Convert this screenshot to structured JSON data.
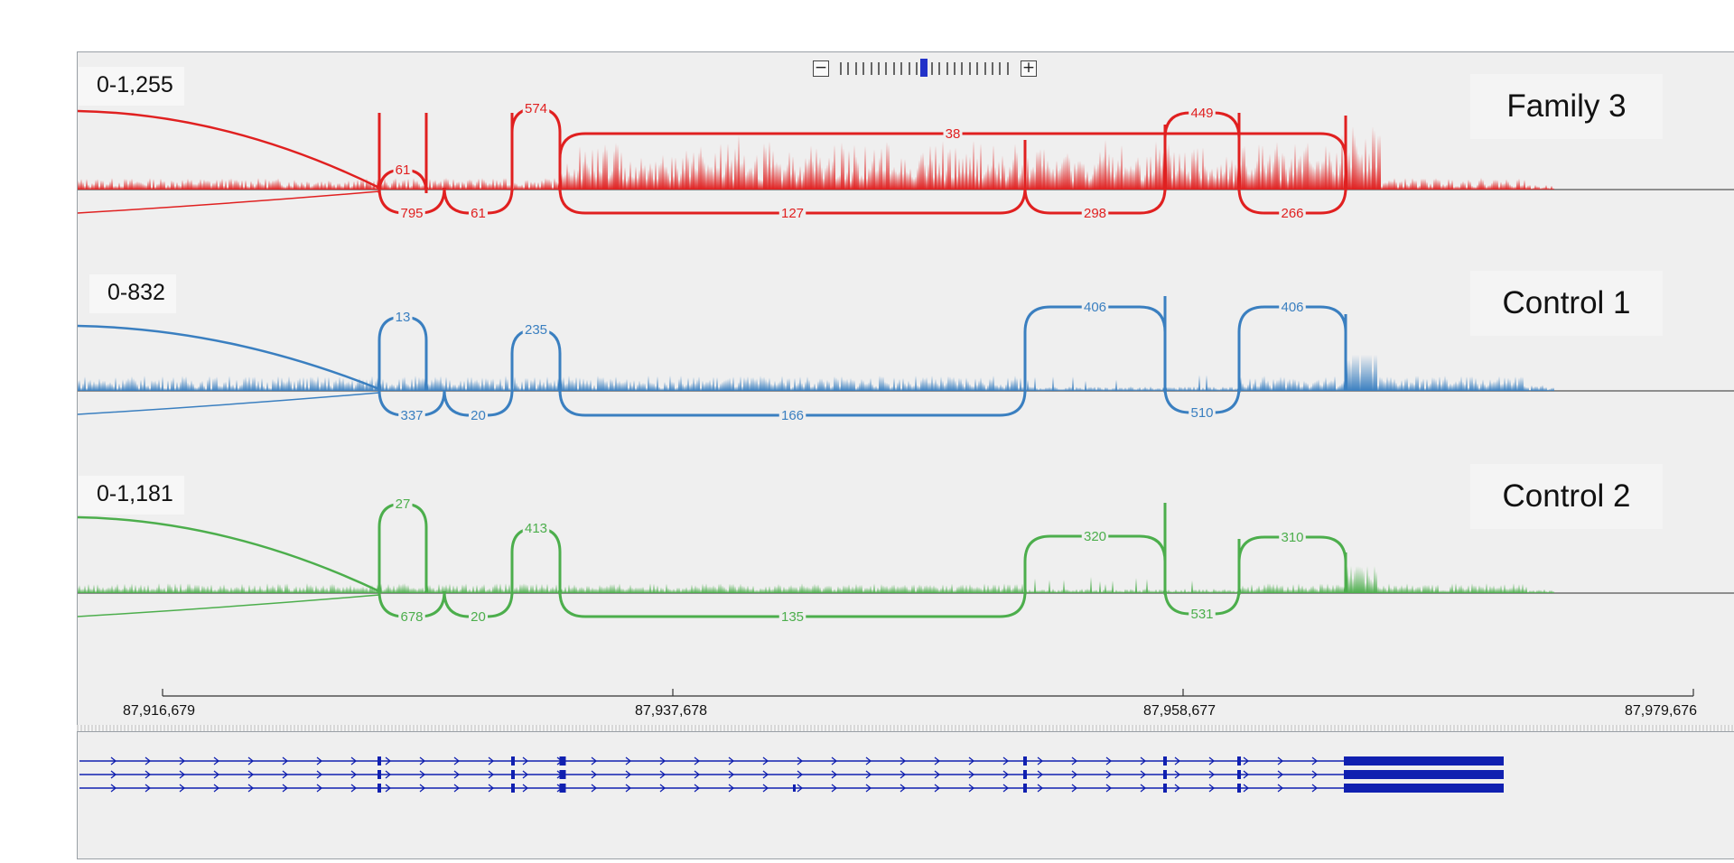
{
  "zoom": {
    "minus_label": "−",
    "plus_label": "+",
    "level": 11,
    "levels": 23
  },
  "region": {
    "start": 87916679,
    "end": 87979676
  },
  "ruler": {
    "ticks": [
      "87,916,679",
      "87,937,678",
      "87,958,677",
      "87,979,676"
    ]
  },
  "tracks": [
    {
      "name": "Family 3",
      "data_range": "0-1,255",
      "color": "#e02020",
      "junctions": [
        {
          "label": "61",
          "side": "above"
        },
        {
          "label": "574",
          "side": "above"
        },
        {
          "label": "38",
          "side": "above"
        },
        {
          "label": "449",
          "side": "above"
        },
        {
          "label": "795",
          "side": "below"
        },
        {
          "label": "61",
          "side": "below"
        },
        {
          "label": "127",
          "side": "below"
        },
        {
          "label": "298",
          "side": "below"
        },
        {
          "label": "266",
          "side": "below"
        }
      ]
    },
    {
      "name": "Control 1",
      "data_range": "0-832",
      "color": "#3a7fc0",
      "junctions": [
        {
          "label": "13",
          "side": "above"
        },
        {
          "label": "235",
          "side": "above"
        },
        {
          "label": "406",
          "side": "above"
        },
        {
          "label": "406",
          "side": "above"
        },
        {
          "label": "337",
          "side": "below"
        },
        {
          "label": "20",
          "side": "below"
        },
        {
          "label": "166",
          "side": "below"
        },
        {
          "label": "510",
          "side": "below"
        }
      ]
    },
    {
      "name": "Control 2",
      "data_range": "0-1,181",
      "color": "#4cae4c",
      "junctions": [
        {
          "label": "27",
          "side": "above"
        },
        {
          "label": "413",
          "side": "above"
        },
        {
          "label": "320",
          "side": "above"
        },
        {
          "label": "310",
          "side": "above"
        },
        {
          "label": "678",
          "side": "below"
        },
        {
          "label": "20",
          "side": "below"
        },
        {
          "label": "135",
          "side": "below"
        },
        {
          "label": "531",
          "side": "below"
        }
      ]
    }
  ],
  "gene_track": {
    "color": "#1020b0",
    "transcripts": 3
  }
}
